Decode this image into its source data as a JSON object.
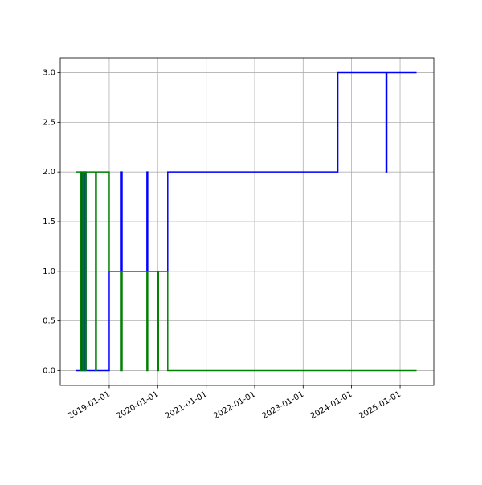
{
  "chart_data": {
    "type": "step",
    "xlim": [
      "2017-12-28",
      "2025-09-12"
    ],
    "xticks": [
      "2019-01-01",
      "2020-01-01",
      "2021-01-01",
      "2022-01-01",
      "2023-01-01",
      "2024-01-01",
      "2025-01-01"
    ],
    "ylim": [
      -0.15,
      3.15
    ],
    "yticks": [
      {
        "value": 0,
        "label": "0.0"
      },
      0.5,
      {
        "value": 1,
        "label": "1.0"
      },
      1.5,
      {
        "value": 2,
        "label": "2.0"
      },
      2.5,
      {
        "value": 3,
        "label": "3.0"
      }
    ],
    "grid": true,
    "series": [
      {
        "color": "#0000ff",
        "x": [
          "2018-04-28",
          "2018-06-03",
          "2018-06-09",
          "2018-06-21",
          "2018-06-28",
          "2018-07-04",
          "2018-07-10",
          "2019-01-01",
          "2019-04-02",
          "2019-04-08",
          "2019-10-12",
          "2019-10-18",
          "2020-03-17",
          "2023-09-20",
          "2024-09-17",
          "2024-09-23",
          "2025-05-05"
        ],
        "values": [
          0,
          2,
          0,
          2,
          0,
          2,
          0,
          1,
          2,
          1,
          2,
          1,
          2,
          3,
          2,
          3,
          3
        ]
      },
      {
        "color": "#008000",
        "x": [
          "2018-04-28",
          "2018-05-28",
          "2018-06-03",
          "2018-06-15",
          "2018-06-21",
          "2018-07-04",
          "2018-07-10",
          "2018-09-20",
          "2018-09-26",
          "2019-01-01",
          "2019-04-02",
          "2019-04-08",
          "2019-10-12",
          "2019-10-18",
          "2020-01-01",
          "2020-01-07",
          "2020-03-17",
          "2025-05-05"
        ],
        "values": [
          2,
          0,
          2,
          0,
          2,
          0,
          2,
          0,
          2,
          1,
          0,
          1,
          0,
          1,
          0,
          1,
          0,
          0
        ]
      }
    ]
  }
}
